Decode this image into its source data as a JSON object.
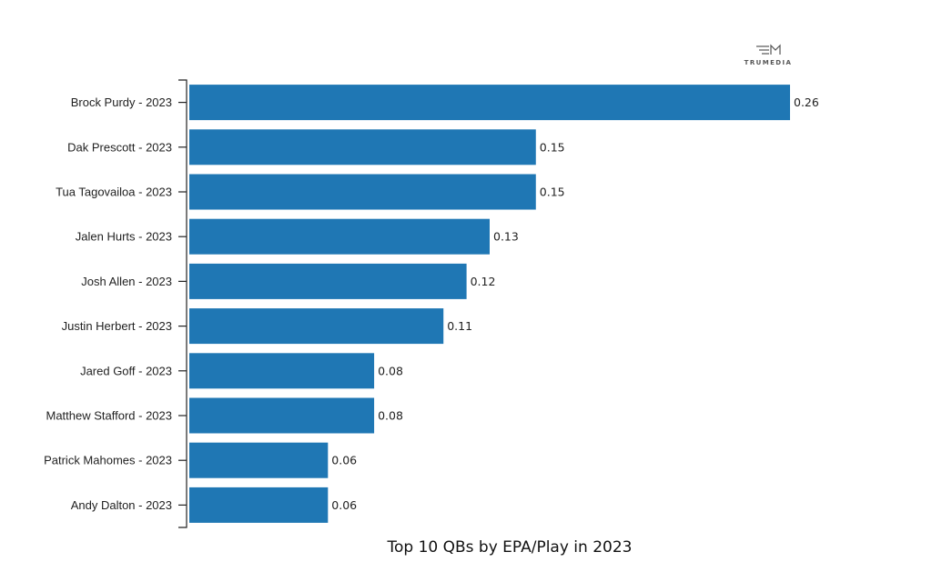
{
  "brand": {
    "name": "TRUMEDIA"
  },
  "chart_data": {
    "type": "bar",
    "orientation": "horizontal",
    "title": "Top 10 QBs by EPA/Play in 2023",
    "categories": [
      "Brock Purdy - 2023",
      "Dak Prescott - 2023",
      "Tua Tagovailoa - 2023",
      "Jalen Hurts - 2023",
      "Josh Allen - 2023",
      "Justin Herbert - 2023",
      "Jared Goff - 2023",
      "Matthew Stafford - 2023",
      "Patrick Mahomes - 2023",
      "Andy Dalton - 2023"
    ],
    "values": [
      0.26,
      0.15,
      0.15,
      0.13,
      0.12,
      0.11,
      0.08,
      0.08,
      0.06,
      0.06
    ],
    "value_labels": [
      "0.26",
      "0.15",
      "0.15",
      "0.13",
      "0.12",
      "0.11",
      "0.08",
      "0.08",
      "0.06",
      "0.06"
    ],
    "xlabel": "",
    "ylabel": "",
    "xlim": [
      0,
      0.26
    ],
    "grid": false,
    "bar_color": "#1f77b4"
  }
}
